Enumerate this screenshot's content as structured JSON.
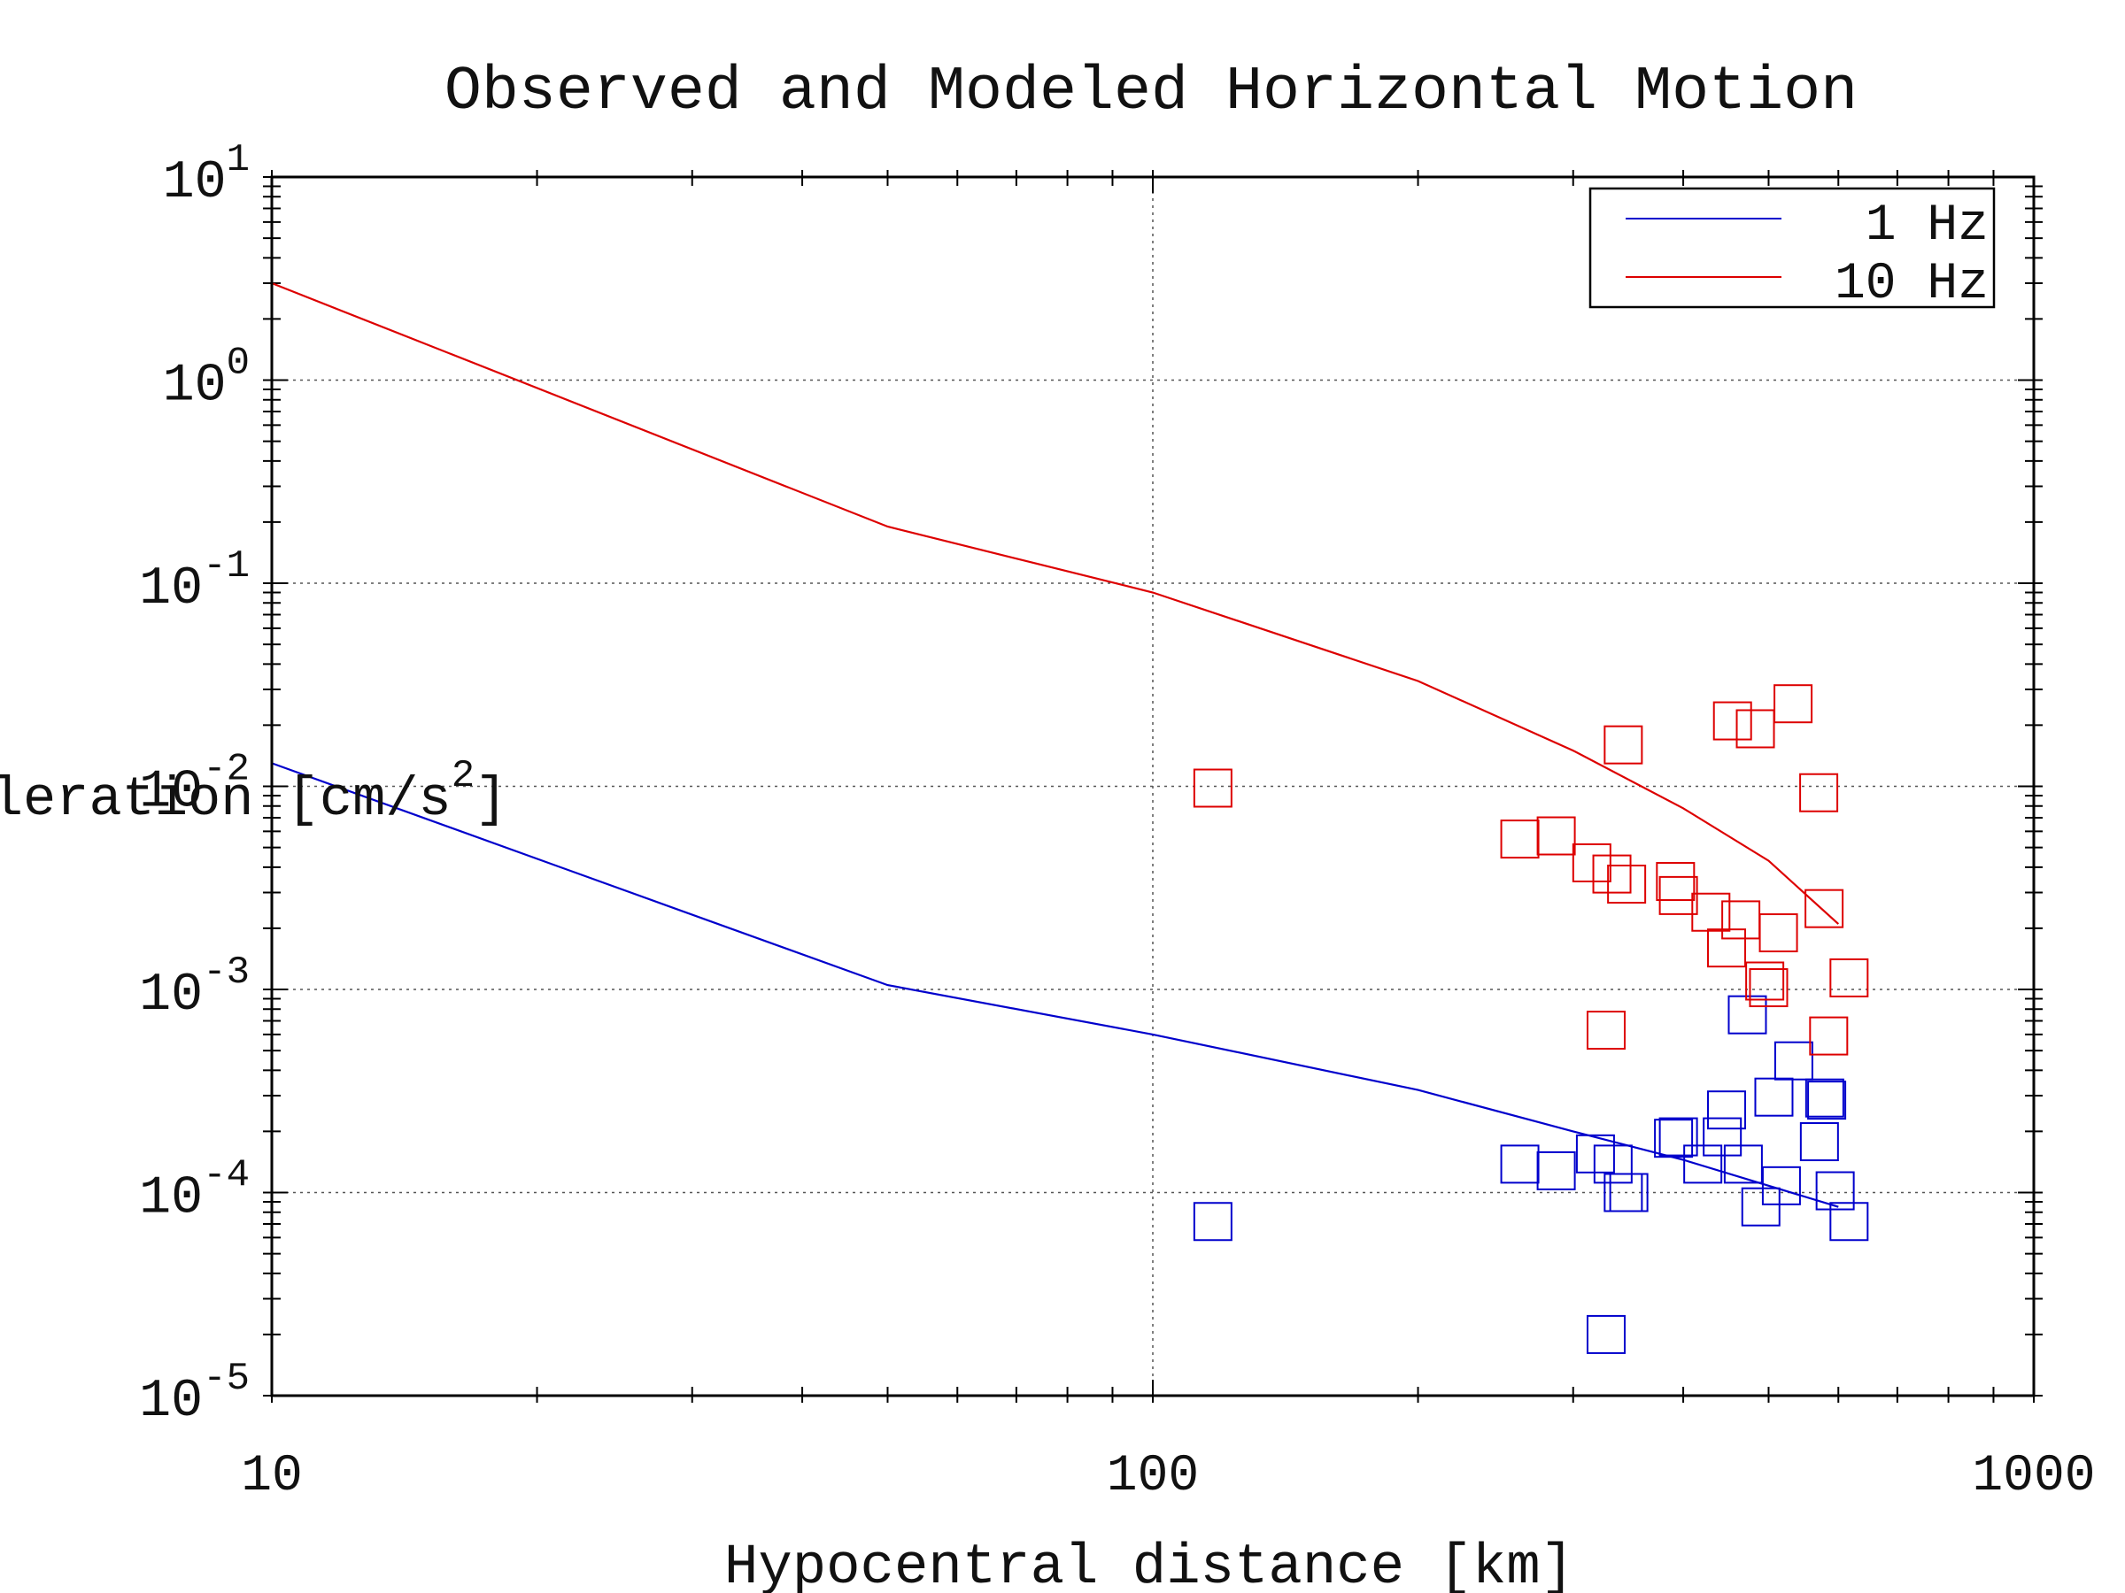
{
  "chart_data": {
    "type": "scatter",
    "title": "Observed and Modeled Horizontal Motion",
    "xlabel": "Hypocentral distance [km]",
    "ylabel_main": "Acceleration [cm/s",
    "ylabel_sup": "2",
    "ylabel_end": "]",
    "x_scale": "log",
    "y_scale": "log",
    "xlim": [
      10,
      1000
    ],
    "ylim": [
      1e-05,
      10
    ],
    "x_ticks": [
      {
        "value": 10,
        "label": "10"
      },
      {
        "value": 100,
        "label": "100"
      },
      {
        "value": 1000,
        "label": "1000"
      }
    ],
    "y_ticks": [
      {
        "value": 10,
        "base": "10",
        "exp": "1"
      },
      {
        "value": 1,
        "base": "10",
        "exp": "0"
      },
      {
        "value": 0.1,
        "base": "10",
        "exp": "-1"
      },
      {
        "value": 0.01,
        "base": "10",
        "exp": "-2"
      },
      {
        "value": 0.001,
        "base": "10",
        "exp": "-3"
      },
      {
        "value": 0.0001,
        "base": "10",
        "exp": "-4"
      },
      {
        "value": 1e-05,
        "base": "10",
        "exp": "-5"
      }
    ],
    "grid": "dotted at decades",
    "legend": {
      "placement": "top-right",
      "entries": [
        "1 Hz",
        "10 Hz"
      ]
    },
    "colors": {
      "1hz": "#0000cc",
      "10hz": "#dd0000"
    },
    "model_lines": [
      {
        "name": "1 Hz",
        "color": "#0000cc",
        "x": [
          10,
          50,
          100,
          200,
          300,
          400,
          500,
          600
        ],
        "y": [
          0.013,
          0.00105,
          0.0006,
          0.00032,
          0.0002,
          0.000145,
          0.000108,
          8.5e-05
        ]
      },
      {
        "name": "10 Hz",
        "color": "#dd0000",
        "x": [
          10,
          50,
          100,
          200,
          300,
          400,
          500,
          600
        ],
        "y": [
          3.0,
          0.19,
          0.09,
          0.033,
          0.015,
          0.0078,
          0.0043,
          0.0021
        ]
      }
    ],
    "observed": [
      {
        "name": "1 Hz",
        "color": "#0000cc",
        "x": [
          117,
          261,
          287,
          318,
          327,
          333,
          342,
          347,
          390,
          395,
          421,
          443,
          448,
          468,
          473,
          490,
          507,
          517,
          534,
          571,
          579,
          582,
          595,
          617
        ],
        "y": [
          7.2e-05,
          0.000138,
          0.000128,
          0.000155,
          2e-05,
          0.000138,
          0.0001,
          0.0001,
          0.000185,
          0.000188,
          0.000138,
          0.000188,
          0.000255,
          0.000138,
          0.00075,
          8.5e-05,
          0.000295,
          0.000108,
          0.000445,
          0.000178,
          0.000292,
          0.000285,
          0.000102,
          7.2e-05
        ]
      },
      {
        "name": "10 Hz",
        "color": "#dd0000",
        "x": [
          117,
          261,
          287,
          315,
          327,
          332,
          342,
          345,
          392,
          395,
          430,
          448,
          455,
          465,
          483,
          495,
          500,
          513,
          533,
          570,
          578,
          585,
          617
        ],
        "y": [
          0.0098,
          0.0055,
          0.0057,
          0.0042,
          0.00063,
          0.0037,
          0.016,
          0.0033,
          0.0034,
          0.0029,
          0.0024,
          0.0016,
          0.021,
          0.0022,
          0.0192,
          0.0011,
          0.00102,
          0.0019,
          0.0255,
          0.0093,
          0.0025,
          0.00059,
          0.00114
        ]
      }
    ]
  }
}
